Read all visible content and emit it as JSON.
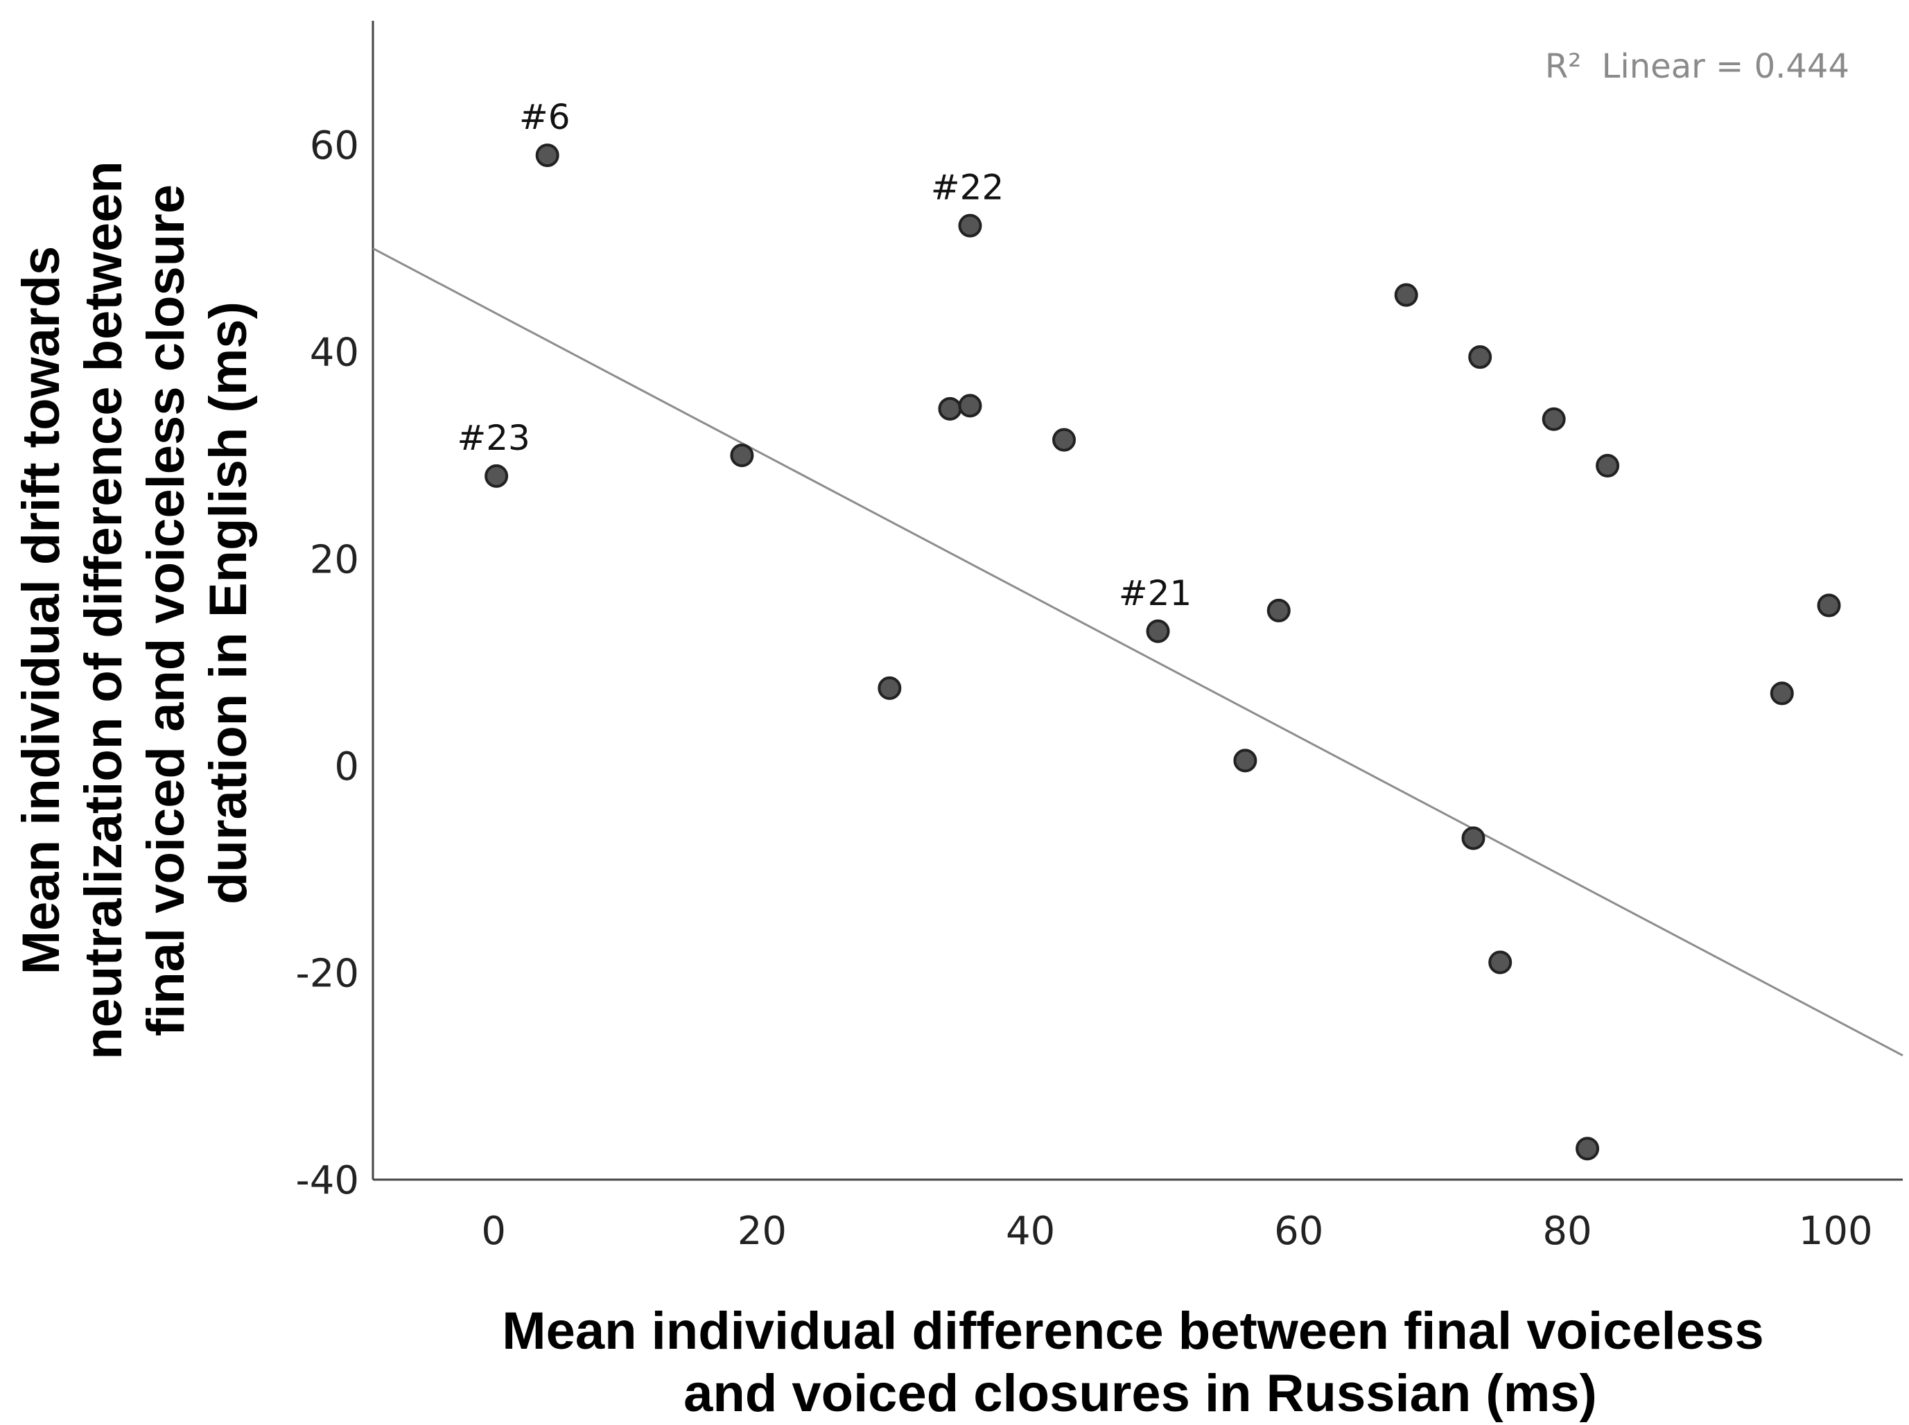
{
  "chart_data": {
    "type": "scatter",
    "x_axis": {
      "title_lines": [
        "Mean individual difference between final voiceless",
        "and voiced closures in Russian (ms)"
      ],
      "range": [
        -9,
        105
      ],
      "ticks": [
        0,
        20,
        40,
        60,
        80,
        100
      ],
      "tick_labels": [
        "0",
        "20",
        "40",
        "60",
        "80",
        "100"
      ]
    },
    "y_axis": {
      "title_lines": [
        "Mean individual drift towards",
        "neutralization of difference between",
        "final voiced and voiceless closure",
        "duration in English (ms)"
      ],
      "range": [
        -40,
        72
      ],
      "ticks": [
        -40,
        -20,
        0,
        20,
        40,
        60
      ],
      "tick_labels": [
        "-40",
        "-20",
        "0",
        "20",
        "40",
        "60"
      ]
    },
    "points": [
      {
        "x": 4.0,
        "y": 59.0,
        "label": "#6"
      },
      {
        "x": 35.5,
        "y": 52.2,
        "label": "#22"
      },
      {
        "x": 0.2,
        "y": 28.0,
        "label": "#23"
      },
      {
        "x": 83.0,
        "y": 29.0,
        "label": ""
      },
      {
        "x": 49.5,
        "y": 13.0,
        "label": "#21"
      },
      {
        "x": 18.5,
        "y": 30.0,
        "label": ""
      },
      {
        "x": 34.0,
        "y": 34.5,
        "label": ""
      },
      {
        "x": 35.5,
        "y": 34.8,
        "label": ""
      },
      {
        "x": 42.5,
        "y": 31.5,
        "label": ""
      },
      {
        "x": 29.5,
        "y": 7.5,
        "label": ""
      },
      {
        "x": 58.5,
        "y": 15.0,
        "label": ""
      },
      {
        "x": 56.0,
        "y": 0.5,
        "label": ""
      },
      {
        "x": 68.0,
        "y": 45.5,
        "label": ""
      },
      {
        "x": 73.5,
        "y": 39.5,
        "label": ""
      },
      {
        "x": 79.0,
        "y": 33.5,
        "label": ""
      },
      {
        "x": 73.0,
        "y": -7.0,
        "label": ""
      },
      {
        "x": 96.0,
        "y": 7.0,
        "label": ""
      },
      {
        "x": 99.5,
        "y": 15.5,
        "label": ""
      },
      {
        "x": 75.0,
        "y": -19.0,
        "label": ""
      },
      {
        "x": 81.5,
        "y": -37.0,
        "label": ""
      }
    ],
    "fit_line": {
      "type": "linear",
      "x": [
        -9,
        105
      ],
      "y": [
        50.0,
        -28.0
      ],
      "r2_text": "Linear = 0.444",
      "r2_symbol": "R²",
      "color": "#8c8c8c"
    },
    "marker_color": "#555555",
    "marker_edge": "#222222",
    "axis_color": "#444444"
  }
}
